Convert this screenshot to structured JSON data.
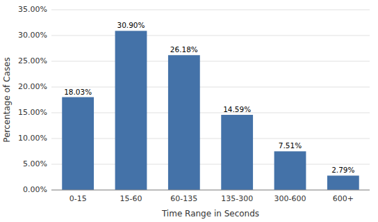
{
  "chart_data": {
    "type": "bar",
    "categories": [
      "0-15",
      "15-60",
      "60-135",
      "135-300",
      "300-600",
      "600+"
    ],
    "values": [
      18.03,
      30.9,
      26.18,
      14.59,
      7.51,
      2.79
    ],
    "value_labels": [
      "18.03%",
      "30.90%",
      "26.18%",
      "14.59%",
      "7.51%",
      "2.79%"
    ],
    "color": "#4472a8",
    "xlabel": "Time Range in Seconds",
    "ylabel": "Percentage of Cases",
    "ylim": [
      0,
      35
    ],
    "yticks": [
      {
        "value": 0,
        "label": "0.00%"
      },
      {
        "value": 5,
        "label": "5.00%"
      },
      {
        "value": 10,
        "label": "10.00%"
      },
      {
        "value": 15,
        "label": "15.00%"
      },
      {
        "value": 20,
        "label": "20.00%"
      },
      {
        "value": 25,
        "label": "25.00%"
      },
      {
        "value": 30,
        "label": "30.00%"
      },
      {
        "value": 35,
        "label": "35.00%"
      }
    ],
    "grid": true,
    "data_labels": true
  }
}
